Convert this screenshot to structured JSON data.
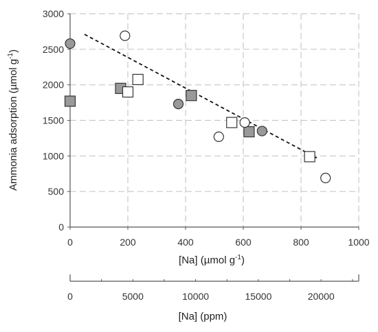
{
  "chart_data": {
    "type": "scatter",
    "xlabel_main": "[Na]",
    "xlabel_unit": "(µmol g",
    "xlabel_sup": "-1",
    "xlabel_close": ")",
    "ylabel_main": "Ammonia adsorption (µmol g",
    "ylabel_sup": "-1",
    "ylabel_close": ")",
    "xlim": [
      0,
      1000
    ],
    "ylim": [
      0,
      3000
    ],
    "xticks": [
      "0",
      "200",
      "400",
      "600",
      "800",
      "1000"
    ],
    "yticks": [
      "0",
      "500",
      "1000",
      "1500",
      "2000",
      "2500",
      "3000"
    ],
    "grid": true,
    "secondary_axis": {
      "label": "[Na] (ppm)",
      "ticks": [
        {
          "label": "0",
          "value": 0
        },
        {
          "label": "5000",
          "value": 5000
        },
        {
          "label": "10000",
          "value": 10000
        },
        {
          "label": "15000",
          "value": 15000
        },
        {
          "label": "20000",
          "value": 20000
        }
      ],
      "range": [
        0,
        23000
      ]
    },
    "series": [
      {
        "marker": "circle",
        "fill": "#999999",
        "points": [
          [
            0,
            2580
          ],
          [
            375,
            1730
          ],
          [
            665,
            1350
          ]
        ]
      },
      {
        "marker": "square",
        "fill": "#999999",
        "points": [
          [
            0,
            1770
          ],
          [
            175,
            1950
          ],
          [
            420,
            1850
          ],
          [
            620,
            1340
          ]
        ]
      },
      {
        "marker": "circle",
        "fill": "#ffffff",
        "points": [
          [
            190,
            2690
          ],
          [
            515,
            1270
          ],
          [
            605,
            1470
          ],
          [
            885,
            690
          ]
        ]
      },
      {
        "marker": "square",
        "fill": "#ffffff",
        "points": [
          [
            200,
            1900
          ],
          [
            235,
            2075
          ],
          [
            560,
            1470
          ],
          [
            830,
            990
          ]
        ]
      }
    ],
    "trendline": {
      "style": "dashed",
      "x": [
        50,
        860
      ],
      "y": [
        2710,
        960
      ]
    }
  }
}
